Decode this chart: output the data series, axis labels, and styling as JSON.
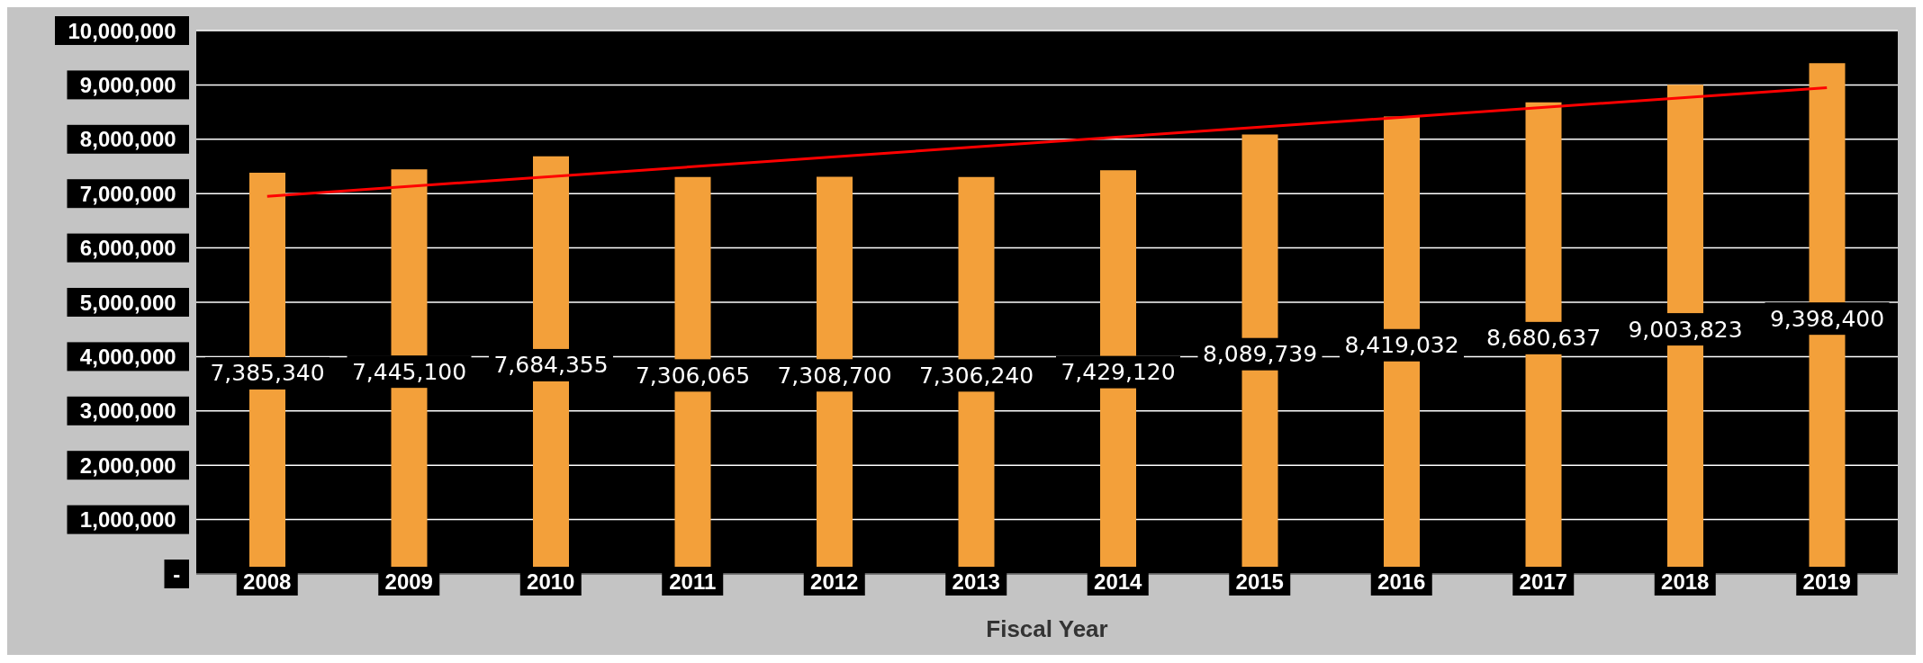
{
  "chart_data": {
    "type": "bar",
    "xlabel": "Fiscal Year",
    "categories": [
      "2008",
      "2009",
      "2010",
      "2011",
      "2012",
      "2013",
      "2014",
      "2015",
      "2016",
      "2017",
      "2018",
      "2019"
    ],
    "series": [
      {
        "color": "#f3a03a",
        "values": [
          7385340,
          7445100,
          7684355,
          7306065,
          7308700,
          7306240,
          7429120,
          8089739,
          8419032,
          8680637,
          9003823,
          9398400
        ],
        "value_labels": [
          "7,385,340",
          "7,445,100",
          "7,684,355",
          "7,306,065",
          "7,308,700",
          "7,306,240",
          "7,429,120",
          "8,089,739",
          "8,419,032",
          "8,680,637",
          "9,003,823",
          "9,398,400"
        ]
      },
      {
        "type": "line",
        "color": "#ff0000",
        "values": [
          6950000,
          null,
          null,
          null,
          null,
          null,
          null,
          null,
          null,
          null,
          null,
          8950000
        ]
      }
    ],
    "ylim": [
      0,
      10000000
    ],
    "yticks": [
      {
        "value": 0,
        "label": "-"
      },
      {
        "value": 1000000,
        "label": "1,000,000"
      },
      {
        "value": 2000000,
        "label": "2,000,000"
      },
      {
        "value": 3000000,
        "label": "3,000,000"
      },
      {
        "value": 4000000,
        "label": "4,000,000"
      },
      {
        "value": 5000000,
        "label": "5,000,000"
      },
      {
        "value": 6000000,
        "label": "6,000,000"
      },
      {
        "value": 7000000,
        "label": "7,000,000"
      },
      {
        "value": 8000000,
        "label": "8,000,000"
      },
      {
        "value": 9000000,
        "label": "9,000,000"
      },
      {
        "value": 10000000,
        "label": "10,000,000"
      }
    ],
    "grid": "y"
  }
}
